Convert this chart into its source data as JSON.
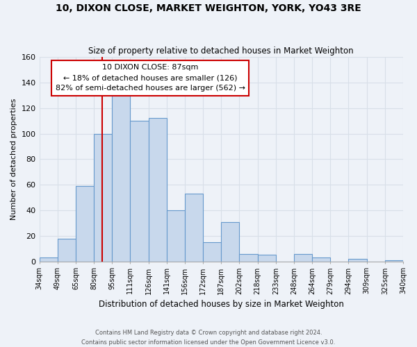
{
  "title": "10, DIXON CLOSE, MARKET WEIGHTON, YORK, YO43 3RE",
  "subtitle": "Size of property relative to detached houses in Market Weighton",
  "xlabel": "Distribution of detached houses by size in Market Weighton",
  "ylabel": "Number of detached properties",
  "footer_line1": "Contains HM Land Registry data © Crown copyright and database right 2024.",
  "footer_line2": "Contains public sector information licensed under the Open Government Licence v3.0.",
  "bin_labels": [
    "34sqm",
    "49sqm",
    "65sqm",
    "80sqm",
    "95sqm",
    "111sqm",
    "126sqm",
    "141sqm",
    "156sqm",
    "172sqm",
    "187sqm",
    "202sqm",
    "218sqm",
    "233sqm",
    "248sqm",
    "264sqm",
    "279sqm",
    "294sqm",
    "309sqm",
    "325sqm",
    "340sqm"
  ],
  "bar_values": [
    3,
    18,
    59,
    100,
    133,
    110,
    112,
    40,
    53,
    15,
    31,
    6,
    5,
    0,
    6,
    3,
    0,
    2,
    0,
    1
  ],
  "bar_color": "#c8d8ec",
  "bar_edge_color": "#6699cc",
  "vline_color": "#cc0000",
  "ylim": [
    0,
    160
  ],
  "yticks": [
    0,
    20,
    40,
    60,
    80,
    100,
    120,
    140,
    160
  ],
  "annotation_title": "10 DIXON CLOSE: 87sqm",
  "annotation_line1": "← 18% of detached houses are smaller (126)",
  "annotation_line2": "82% of semi-detached houses are larger (562) →",
  "annotation_box_color": "#ffffff",
  "annotation_box_edge": "#cc0000",
  "grid_color": "#d8dfe8",
  "background_color": "#eef2f8"
}
